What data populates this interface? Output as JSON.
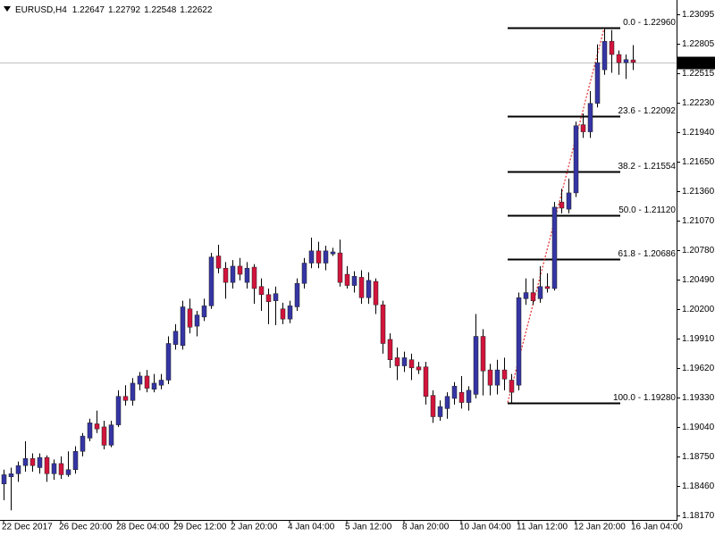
{
  "chart_data": {
    "type": "candlestick",
    "title": "EURUSD,H4",
    "header_values": [
      1.22647,
      1.22792,
      1.22548,
      1.22622
    ],
    "categories": [
      "22 Dec 2017",
      null,
      null,
      null,
      null,
      null,
      null,
      null,
      "26 Dec 20:00",
      null,
      null,
      null,
      null,
      null,
      null,
      null,
      "28 Dec 04:00",
      null,
      null,
      null,
      null,
      null,
      null,
      null,
      "29 Dec 12:00",
      null,
      null,
      null,
      null,
      null,
      null,
      null,
      "2 Jan 20:00",
      null,
      null,
      null,
      null,
      null,
      null,
      null,
      "4 Jan 04:00",
      null,
      null,
      null,
      null,
      null,
      null,
      null,
      "5 Jan 12:00",
      null,
      null,
      null,
      null,
      null,
      null,
      null,
      "8 Jan 20:00",
      null,
      null,
      null,
      null,
      null,
      null,
      null,
      "10 Jan 04:00",
      null,
      null,
      null,
      null,
      null,
      null,
      null,
      "11 Jan 12:00",
      null,
      null,
      null,
      null,
      null,
      null,
      null,
      "12 Jan 20:00",
      null,
      null,
      null,
      null,
      null,
      null,
      null,
      "16 Jan 04:00"
    ],
    "open": [
      1.1848,
      1.1855,
      1.1858,
      1.1866,
      1.1873,
      1.1864,
      1.1874,
      1.1858,
      1.1868,
      1.1857,
      1.1862,
      1.188,
      1.1893,
      1.1907,
      1.1904,
      1.1886,
      1.1906,
      1.1934,
      1.193,
      1.1946,
      1.1954,
      1.1941,
      1.1945,
      1.195,
      1.1985,
      1.1984,
      1.202,
      1.2003,
      1.2012,
      1.2023,
      1.2072,
      1.206,
      1.2046,
      1.2062,
      1.2046,
      1.2061,
      1.2042,
      1.2034,
      1.2028,
      1.202,
      1.201,
      1.2022,
      1.2045,
      1.2065,
      1.2077,
      1.2065,
      1.2074,
      1.2075,
      1.2054,
      1.2043,
      1.2051,
      1.2031,
      1.2047,
      1.2024,
      1.199,
      1.1972,
      1.1964,
      1.197,
      1.1963,
      1.1963,
      1.1935,
      1.1914,
      1.1922,
      1.1932,
      1.1938,
      1.1928,
      1.1936,
      1.1993,
      1.196,
      1.1945,
      1.196,
      1.195,
      1.1945,
      1.203,
      1.2036,
      1.203,
      1.2042,
      1.204,
      1.2125,
      1.2118,
      1.2134,
      1.2201,
      1.2194,
      1.2222,
      1.2255,
      1.2283,
      1.227,
      1.2262,
      1.22647
    ],
    "high": [
      1.1862,
      1.1864,
      1.187,
      1.189,
      1.1878,
      1.1878,
      1.1876,
      1.1872,
      1.1875,
      1.188,
      1.1885,
      1.1898,
      1.1912,
      1.192,
      1.191,
      1.191,
      1.194,
      1.1945,
      1.1952,
      1.1958,
      1.196,
      1.1956,
      1.1956,
      1.1993,
      1.2005,
      1.2028,
      1.203,
      1.2018,
      1.203,
      1.2075,
      1.2083,
      1.2066,
      1.2068,
      1.207,
      1.2066,
      1.2064,
      1.205,
      1.204,
      1.2042,
      1.2026,
      1.2028,
      1.205,
      1.207,
      1.209,
      1.2086,
      1.2082,
      1.208,
      1.2088,
      1.2062,
      1.2057,
      1.2058,
      1.2056,
      1.205,
      1.2028,
      1.1996,
      1.1982,
      1.1978,
      1.1976,
      1.1968,
      1.1968,
      1.194,
      1.193,
      1.1938,
      1.1948,
      1.1954,
      1.1944,
      1.2015,
      1.2,
      1.1966,
      1.197,
      1.1972,
      1.1956,
      1.2036,
      1.205,
      1.205,
      1.2062,
      1.2055,
      1.2125,
      1.2138,
      1.2148,
      1.2204,
      1.2212,
      1.2234,
      1.228,
      1.2296,
      1.2294,
      1.2274,
      1.227,
      1.22792
    ],
    "low": [
      1.1832,
      1.1822,
      1.185,
      1.186,
      1.186,
      1.1858,
      1.185,
      1.1852,
      1.1853,
      1.1855,
      1.1858,
      1.1875,
      1.189,
      1.1898,
      1.1882,
      1.1884,
      1.1904,
      1.1925,
      1.1925,
      1.194,
      1.1938,
      1.1938,
      1.1941,
      1.1946,
      1.198,
      1.198,
      1.1996,
      1.1993,
      1.2008,
      1.202,
      1.2055,
      1.203,
      1.204,
      1.2048,
      1.204,
      1.2025,
      1.2018,
      1.2005,
      1.2004,
      1.2005,
      1.2006,
      1.2018,
      1.204,
      1.206,
      1.206,
      1.2058,
      1.2072,
      1.2042,
      1.204,
      1.2036,
      1.2025,
      1.2025,
      1.2015,
      1.1976,
      1.1962,
      1.195,
      1.1958,
      1.195,
      1.1956,
      1.1926,
      1.1908,
      1.191,
      1.1912,
      1.1926,
      1.1922,
      1.192,
      1.1932,
      1.1935,
      1.1935,
      1.1936,
      1.194,
      1.1928,
      1.194,
      1.2024,
      1.2024,
      1.2026,
      1.2036,
      1.2038,
      1.2114,
      1.2114,
      1.213,
      1.2188,
      1.2188,
      1.2218,
      1.225,
      1.2252,
      1.225,
      1.2246,
      1.22548
    ],
    "close": [
      1.1857,
      1.1858,
      1.1866,
      1.1873,
      1.1866,
      1.1874,
      1.1858,
      1.1868,
      1.1857,
      1.1862,
      1.188,
      1.1895,
      1.1908,
      1.1902,
      1.1886,
      1.1906,
      1.1934,
      1.193,
      1.1947,
      1.1954,
      1.1942,
      1.1947,
      1.195,
      1.1986,
      1.1998,
      1.2022,
      1.2002,
      1.2014,
      1.2023,
      1.2071,
      1.206,
      1.2046,
      1.2062,
      1.2054,
      1.206,
      1.204,
      1.2034,
      1.2027,
      1.2035,
      1.201,
      1.2023,
      1.2045,
      1.2065,
      1.2077,
      1.2065,
      1.2077,
      1.2076,
      1.2046,
      1.2043,
      1.2052,
      1.2031,
      1.2048,
      1.2024,
      1.1986,
      1.197,
      1.1964,
      1.1972,
      1.1962,
      1.196,
      1.1934,
      1.1914,
      1.1924,
      1.1934,
      1.1944,
      1.1928,
      1.194,
      1.1993,
      1.1959,
      1.1945,
      1.196,
      1.1951,
      1.1938,
      1.2031,
      1.2036,
      1.2028,
      1.2042,
      1.204,
      1.212,
      1.2119,
      1.2134,
      1.22,
      1.2194,
      1.2222,
      1.2262,
      1.2283,
      1.227,
      1.2262,
      1.2265,
      1.22622
    ],
    "up_color": "#3535a5",
    "down_color": "#d2143c",
    "wick_color": "#000000",
    "ylim": [
      1.18126,
      1.23218
    ],
    "yticks": [
      1.23095,
      1.22805,
      1.22515,
      {
        "value": 1.2223,
        "label": "1.22230"
      },
      {
        "value": 1.2194,
        "label": "1.21940"
      },
      {
        "value": 1.2165,
        "label": "1.21650"
      },
      {
        "value": 1.2136,
        "label": "1.21360"
      },
      {
        "value": 1.2107,
        "label": "1.21070"
      },
      {
        "value": 1.2078,
        "label": "1.20780"
      },
      {
        "value": 1.2049,
        "label": "1.20490"
      },
      {
        "value": 1.202,
        "label": "1.20200"
      },
      {
        "value": 1.1991,
        "label": "1.19910"
      },
      {
        "value": 1.1962,
        "label": "1.19620"
      },
      {
        "value": 1.1933,
        "label": "1.19330"
      },
      {
        "value": 1.1904,
        "label": "1.19040"
      },
      {
        "value": 1.1875,
        "label": "1.18750"
      },
      {
        "value": 1.1846,
        "label": "1.18460"
      },
      {
        "value": 1.1817,
        "label": "1.18170"
      }
    ],
    "grid": false,
    "current_price": 1.22622,
    "fib_levels": [
      {
        "value": 1.2296,
        "label": "0.0 - 1.22960"
      },
      {
        "value": 1.22092,
        "label": "23.6 - 1.22092"
      },
      {
        "value": 1.21554,
        "label": "38.2 - 1.21554"
      },
      {
        "value": 1.2112,
        "label": "50.0 - 1.21120"
      },
      {
        "value": 1.20686,
        "label": "61.8 - 1.20686"
      },
      {
        "value": 1.1928,
        "label": "100.0 - 1.19280"
      }
    ],
    "fib_color": "#000000",
    "fib_trend_color": "#e00000"
  }
}
